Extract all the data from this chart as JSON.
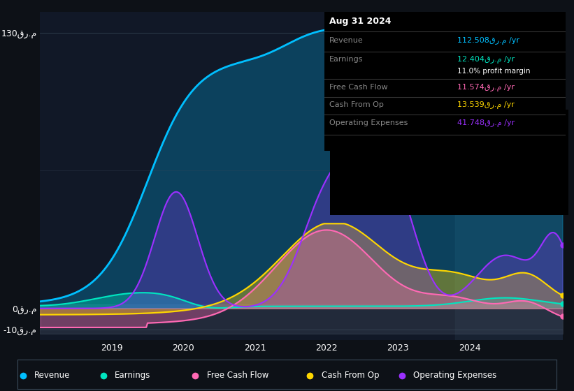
{
  "bg_color": "#0d1117",
  "plot_bg_color": "#111827",
  "title": "Aug 31 2024",
  "ylabel": "قر.م",
  "ylim": [
    -15,
    140
  ],
  "yticks": [
    -10,
    0,
    130
  ],
  "ytick_labels": [
    "-10قر.م",
    "0قر.م",
    "130قر.م"
  ],
  "xlim": [
    2018.0,
    2025.3
  ],
  "xticks": [
    2019,
    2020,
    2021,
    2022,
    2023,
    2024
  ],
  "colors": {
    "revenue": "#00bfff",
    "earnings": "#00e5c0",
    "fcf": "#ff69b4",
    "cashop": "#ffd700",
    "opex": "#9b30ff"
  },
  "info_box": {
    "date": "Aug 31 2024",
    "revenue_val": "112.508قر.م",
    "earnings_val": "12.404قر.م",
    "profit_margin": "11.0%",
    "fcf_val": "11.574قر.م",
    "cashop_val": "13.539قر.م",
    "opex_val": "41.748قر.م"
  },
  "legend_items": [
    "Revenue",
    "Earnings",
    "Free Cash Flow",
    "Cash From Op",
    "Operating Expenses"
  ],
  "legend_colors": [
    "#00bfff",
    "#00e5c0",
    "#ff69b4",
    "#ffd700",
    "#9b30ff"
  ]
}
